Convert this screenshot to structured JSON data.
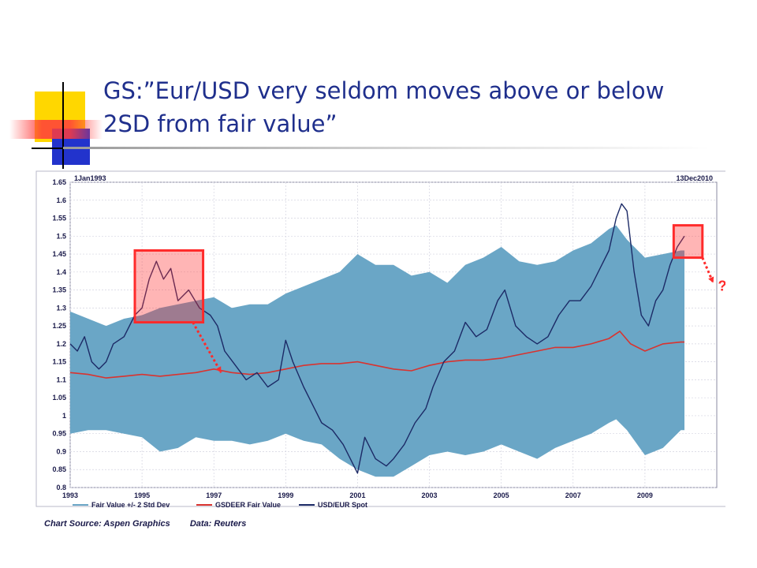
{
  "slide": {
    "title": "GS:”Eur/USD very seldom moves above or below 2SD from fair value”",
    "source": "Chart Source: Aspen Graphics",
    "data_source": "Data: Reuters"
  },
  "colors": {
    "title": "#1f2f8c",
    "band": "#6aa6c6",
    "fair_value": "#d9332f",
    "spot": "#1c2a66",
    "highlight": "#ff2b2b",
    "deco_yellow": "#ffd700",
    "deco_blue": "#2233cc",
    "deco_red": "#ff3030"
  },
  "chart_data": {
    "type": "line",
    "start_label": "1Jan1993",
    "end_label": "13Dec2010",
    "xlim": [
      1993,
      2011
    ],
    "ylim": [
      0.8,
      1.65
    ],
    "x_ticks": [
      "1993",
      "1995",
      "1997",
      "1999",
      "2001",
      "2003",
      "2005",
      "2007",
      "2009"
    ],
    "y_ticks": [
      0.8,
      0.85,
      0.9,
      0.95,
      1,
      1.05,
      1.1,
      1.15,
      1.2,
      1.25,
      1.3,
      1.35,
      1.4,
      1.45,
      1.5,
      1.55,
      1.6,
      1.65
    ],
    "y_tick_labels": [
      "0.8",
      "0.85",
      "0.9",
      "0.95",
      "1",
      "1.05",
      "1.1",
      "1.15",
      "1.2",
      "1.25",
      "1.3",
      "1.35",
      "1.4",
      "1.45",
      "1.5",
      "1.55",
      "1.6",
      "1.65"
    ],
    "grid": true,
    "legend": [
      {
        "label": "Fair Value +/- 2 Std Dev",
        "series": "band"
      },
      {
        "label": "GSDEER Fair Value",
        "series": "fair_value"
      },
      {
        "label": "USD/EUR Spot",
        "series": "spot"
      }
    ],
    "series": [
      {
        "name": "Fair Value +/- 2 Std Dev",
        "kind": "band",
        "x": [
          1993,
          1993.5,
          1994,
          1994.5,
          1995,
          1995.5,
          1996,
          1996.5,
          1997,
          1997.5,
          1998,
          1998.5,
          1999,
          1999.5,
          2000,
          2000.5,
          2001,
          2001.5,
          2002,
          2002.5,
          2003,
          2003.5,
          2004,
          2004.5,
          2005,
          2005.5,
          2006,
          2006.5,
          2007,
          2007.5,
          2008,
          2008.2,
          2008.5,
          2009,
          2009.5,
          2010,
          2010.1
        ],
        "upper": [
          1.29,
          1.27,
          1.25,
          1.27,
          1.28,
          1.3,
          1.31,
          1.32,
          1.33,
          1.3,
          1.31,
          1.31,
          1.34,
          1.36,
          1.38,
          1.4,
          1.45,
          1.42,
          1.42,
          1.39,
          1.4,
          1.37,
          1.42,
          1.44,
          1.47,
          1.43,
          1.42,
          1.43,
          1.46,
          1.48,
          1.52,
          1.53,
          1.49,
          1.44,
          1.45,
          1.46,
          1.46
        ],
        "lower": [
          0.95,
          0.96,
          0.96,
          0.95,
          0.94,
          0.9,
          0.91,
          0.94,
          0.93,
          0.93,
          0.92,
          0.93,
          0.95,
          0.93,
          0.92,
          0.88,
          0.85,
          0.83,
          0.83,
          0.86,
          0.89,
          0.9,
          0.89,
          0.9,
          0.92,
          0.9,
          0.88,
          0.91,
          0.93,
          0.95,
          0.98,
          0.99,
          0.96,
          0.89,
          0.91,
          0.96,
          0.96
        ]
      },
      {
        "name": "GSDEER Fair Value",
        "kind": "line",
        "x": [
          1993,
          1993.5,
          1994,
          1994.5,
          1995,
          1995.5,
          1996,
          1996.5,
          1997,
          1997.5,
          1998,
          1998.5,
          1999,
          1999.5,
          2000,
          2000.5,
          2001,
          2001.5,
          2002,
          2002.5,
          2003,
          2003.5,
          2004,
          2004.5,
          2005,
          2005.5,
          2006,
          2006.5,
          2007,
          2007.5,
          2008,
          2008.3,
          2008.6,
          2009,
          2009.5,
          2010,
          2010.1
        ],
        "y": [
          1.12,
          1.115,
          1.105,
          1.11,
          1.115,
          1.11,
          1.115,
          1.12,
          1.13,
          1.12,
          1.115,
          1.12,
          1.13,
          1.14,
          1.145,
          1.145,
          1.15,
          1.14,
          1.13,
          1.125,
          1.14,
          1.15,
          1.155,
          1.155,
          1.16,
          1.17,
          1.18,
          1.19,
          1.19,
          1.2,
          1.215,
          1.235,
          1.2,
          1.18,
          1.2,
          1.205,
          1.205
        ]
      },
      {
        "name": "USD/EUR Spot",
        "kind": "line",
        "x": [
          1993,
          1993.2,
          1993.4,
          1993.6,
          1993.8,
          1994,
          1994.2,
          1994.5,
          1994.8,
          1995,
          1995.2,
          1995.4,
          1995.6,
          1995.8,
          1996,
          1996.3,
          1996.6,
          1996.9,
          1997.1,
          1997.3,
          1997.6,
          1997.9,
          1998.2,
          1998.5,
          1998.8,
          1999,
          1999.2,
          1999.5,
          1999.8,
          2000,
          2000.3,
          2000.6,
          2000.8,
          2001,
          2001.2,
          2001.5,
          2001.8,
          2002,
          2002.3,
          2002.6,
          2002.9,
          2003.1,
          2003.4,
          2003.7,
          2004,
          2004.3,
          2004.6,
          2004.9,
          2005.1,
          2005.4,
          2005.7,
          2006,
          2006.3,
          2006.6,
          2006.9,
          2007.2,
          2007.5,
          2007.8,
          2008,
          2008.2,
          2008.35,
          2008.5,
          2008.7,
          2008.9,
          2009.1,
          2009.3,
          2009.5,
          2009.7,
          2009.9,
          2010.1
        ],
        "y": [
          1.2,
          1.18,
          1.22,
          1.15,
          1.13,
          1.15,
          1.2,
          1.22,
          1.28,
          1.3,
          1.38,
          1.43,
          1.38,
          1.41,
          1.32,
          1.35,
          1.3,
          1.28,
          1.25,
          1.18,
          1.14,
          1.1,
          1.12,
          1.08,
          1.1,
          1.21,
          1.15,
          1.08,
          1.02,
          0.98,
          0.96,
          0.92,
          0.88,
          0.84,
          0.94,
          0.88,
          0.86,
          0.88,
          0.92,
          0.98,
          1.02,
          1.08,
          1.15,
          1.18,
          1.26,
          1.22,
          1.24,
          1.32,
          1.35,
          1.25,
          1.22,
          1.2,
          1.22,
          1.28,
          1.32,
          1.32,
          1.36,
          1.42,
          1.46,
          1.55,
          1.59,
          1.57,
          1.4,
          1.28,
          1.25,
          1.32,
          1.35,
          1.42,
          1.47,
          1.5
        ]
      }
    ],
    "annotations": [
      {
        "shape": "rect",
        "x0": 1994.8,
        "x1": 1996.7,
        "y0": 1.26,
        "y1": 1.46,
        "color": "#ff2b2b",
        "arrow_to": [
          1997.2,
          1.12
        ]
      },
      {
        "shape": "rect",
        "x0": 2009.8,
        "x1": 2010.6,
        "y0": 1.44,
        "y1": 1.53,
        "color": "#ff2b2b",
        "arrow_to": [
          2010.9,
          1.37
        ],
        "label": "?"
      }
    ]
  }
}
